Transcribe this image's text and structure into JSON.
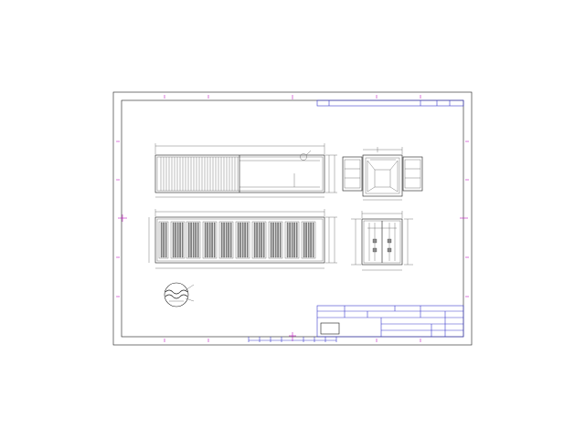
{
  "colors": {
    "line": "#1a1a1a",
    "center_marks": "#c218c2",
    "title_block": "#3a3acc",
    "paper": "#ffffff"
  },
  "views": [
    {
      "name": "side-elevation-open-panels"
    },
    {
      "name": "end-view-doors-open"
    },
    {
      "name": "side-elevation-corrugated"
    },
    {
      "name": "end-view-doors-closed"
    },
    {
      "name": "corrugation-detail-circle"
    }
  ]
}
